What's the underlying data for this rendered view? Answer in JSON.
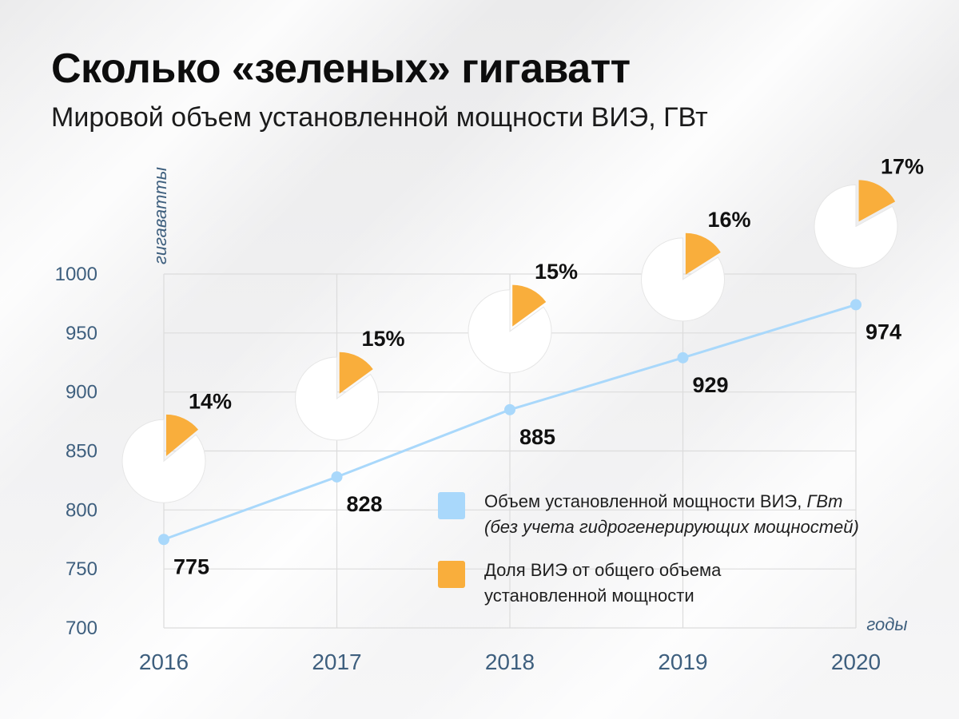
{
  "title": "Сколько «зеленых» гигаватт",
  "subtitle": "Мировой объем установленной мощности ВИЭ, ГВт",
  "colors": {
    "line": "#a9d8fb",
    "share": "#f9ae3c",
    "pie_bg": "#ffffff",
    "axis_text": "#3e5f7e",
    "grid": "#dcdcdc",
    "label": "#111111"
  },
  "legend": {
    "capacity": {
      "text": "Объем установленной мощности ВИЭ, ",
      "italic": "ГВт",
      "note": "(без учета гидрогенерирующих мощностей)"
    },
    "share": {
      "line1": "Доля ВИЭ от общего объема",
      "line2": "установленной мощности"
    }
  },
  "chart_data": {
    "type": "line",
    "title": "Сколько «зеленых» гигаватт",
    "subtitle": "Мировой объем установленной мощности ВИЭ, ГВт",
    "xlabel": "годы",
    "ylabel": "гигаватты",
    "categories": [
      "2016",
      "2017",
      "2018",
      "2019",
      "2020"
    ],
    "ylim": [
      700,
      1000
    ],
    "yticks": [
      700,
      750,
      800,
      850,
      900,
      950,
      1000
    ],
    "grid": true,
    "series": [
      {
        "name": "Объем установленной мощности ВИЭ, ГВт (без учета гидрогенерирующих мощностей)",
        "values": [
          775,
          828,
          885,
          929,
          974
        ]
      },
      {
        "name": "Доля ВИЭ от общего объема установленной мощности",
        "values": [
          14,
          15,
          15,
          16,
          17
        ],
        "value_labels": [
          "14%",
          "15%",
          "15%",
          "16%",
          "17%"
        ]
      }
    ]
  }
}
